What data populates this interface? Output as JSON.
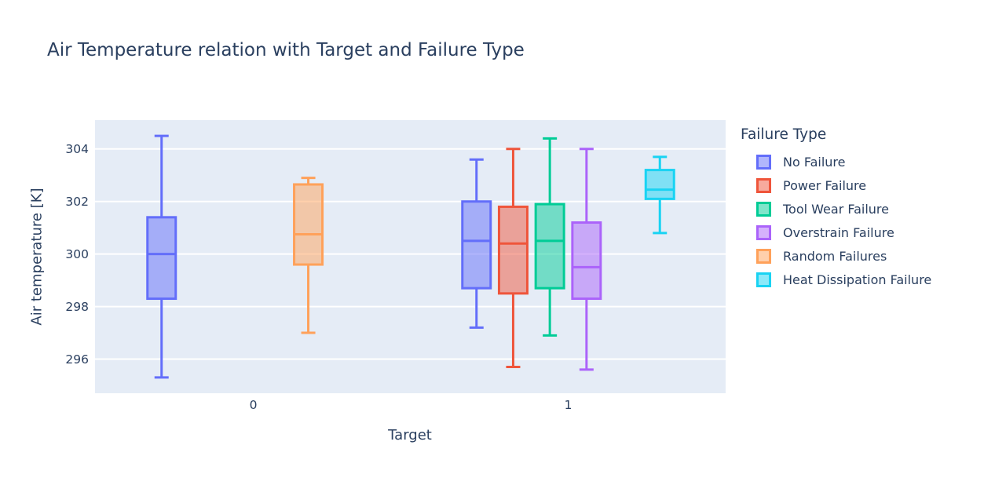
{
  "chart_data": {
    "type": "box",
    "title": "Air Temperature relation with Target and Failure Type",
    "xlabel": "Target",
    "ylabel": "Air temperature [K]",
    "legend_title": "Failure Type",
    "legend_position": "right",
    "grid": true,
    "plot_bg_color": "#e5ecf6",
    "text_color": "#2a3f5f",
    "categories": [
      "0",
      "1"
    ],
    "yticks": [
      296,
      298,
      300,
      302,
      304
    ],
    "ylim": [
      294.7,
      305.1
    ],
    "series": [
      {
        "name": "No Failure",
        "color": "#636EFA",
        "boxes": [
          {
            "x": "0",
            "min": 295.3,
            "q1": 298.3,
            "median": 300.0,
            "q3": 301.4,
            "max": 304.5
          },
          {
            "x": "1",
            "min": 297.2,
            "q1": 298.7,
            "median": 300.5,
            "q3": 302.0,
            "max": 303.6
          }
        ]
      },
      {
        "name": "Power Failure",
        "color": "#EF553B",
        "boxes": [
          {
            "x": "1",
            "min": 295.7,
            "q1": 298.5,
            "median": 300.4,
            "q3": 301.8,
            "max": 304.0
          }
        ]
      },
      {
        "name": "Tool Wear Failure",
        "color": "#00CC96",
        "boxes": [
          {
            "x": "1",
            "min": 296.9,
            "q1": 298.7,
            "median": 300.5,
            "q3": 301.9,
            "max": 304.4
          }
        ]
      },
      {
        "name": "Overstrain Failure",
        "color": "#AB63FA",
        "boxes": [
          {
            "x": "1",
            "min": 295.6,
            "q1": 298.3,
            "median": 299.5,
            "q3": 301.2,
            "max": 304.0
          }
        ]
      },
      {
        "name": "Random Failures",
        "color": "#FFA15A",
        "boxes": [
          {
            "x": "0",
            "min": 297.0,
            "q1": 299.6,
            "median": 300.75,
            "q3": 302.65,
            "max": 302.9
          }
        ]
      },
      {
        "name": "Heat Dissipation Failure",
        "color": "#19D3F3",
        "boxes": [
          {
            "x": "1",
            "min": 300.8,
            "q1": 302.1,
            "median": 302.45,
            "q3": 303.2,
            "max": 303.7
          }
        ]
      }
    ]
  }
}
